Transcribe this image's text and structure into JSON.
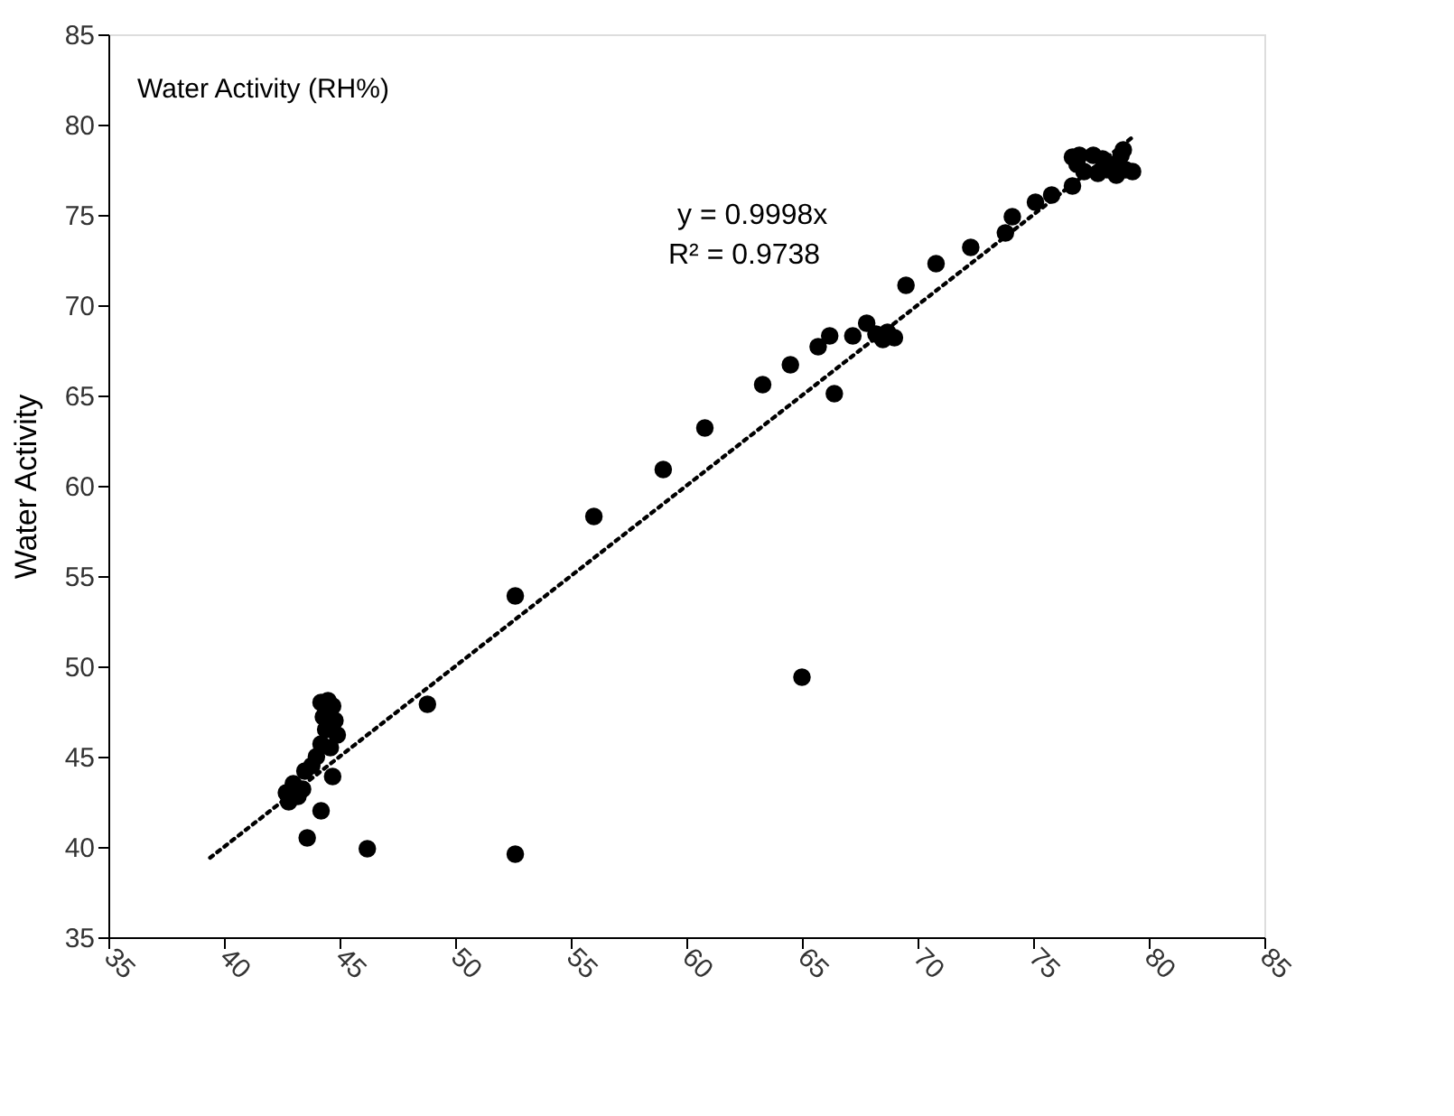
{
  "chart_data": {
    "type": "scatter",
    "ylabel": "Water Activity",
    "annotations": [
      "Water Activity (RH%)",
      "y = 0.9998x",
      "R² = 0.9738"
    ],
    "xlim": [
      35,
      85
    ],
    "xticks": [
      35,
      40,
      45,
      50,
      55,
      60,
      65,
      70,
      75,
      80,
      85
    ],
    "ylim": [
      35,
      85
    ],
    "yticks": [
      35,
      40,
      45,
      50,
      55,
      60,
      65,
      70,
      75,
      80,
      85
    ],
    "grid": false,
    "marker": "circle",
    "series": [
      {
        "color": "#000000",
        "x": [
          43.6,
          46.2,
          52.6,
          65.0,
          48.8,
          44.2,
          44.7,
          42.7,
          42.8,
          43.0,
          43.2,
          43.4,
          43.5,
          43.8,
          44.0,
          44.2,
          44.4,
          44.3,
          44.2,
          44.5,
          44.7,
          44.8,
          44.9,
          44.6,
          52.6,
          56.0,
          59.0,
          60.8,
          63.3,
          64.5,
          66.4,
          65.7,
          66.2,
          67.2,
          67.8,
          68.2,
          68.7,
          68.5,
          69.0,
          69.5,
          70.8,
          72.3,
          73.8,
          74.1,
          75.1,
          75.8,
          76.7,
          76.7,
          77.0,
          77.6,
          78.0,
          77.8,
          78.2,
          78.5,
          78.8,
          79.0,
          79.3,
          78.6,
          77.2,
          76.9,
          78.9
        ],
        "values": [
          40.5,
          39.9,
          39.6,
          49.4,
          47.9,
          42.0,
          43.9,
          43.0,
          42.5,
          43.5,
          42.8,
          43.2,
          44.2,
          44.5,
          45.0,
          45.7,
          46.5,
          47.2,
          48.0,
          48.1,
          47.8,
          47.0,
          46.2,
          45.5,
          53.9,
          58.3,
          60.9,
          63.2,
          65.6,
          66.7,
          65.1,
          67.7,
          68.3,
          68.3,
          69.0,
          68.4,
          68.5,
          68.1,
          68.2,
          71.1,
          72.3,
          73.2,
          74.0,
          74.9,
          75.7,
          76.1,
          76.6,
          78.2,
          78.3,
          78.3,
          78.1,
          77.3,
          77.5,
          77.8,
          78.3,
          77.5,
          77.4,
          77.2,
          77.4,
          77.8,
          78.6
        ]
      },
      {
        "type": "line",
        "color": "#000000",
        "line_style": "dotted",
        "marker": "none",
        "x": [
          39.4,
          79.3
        ],
        "values": [
          39.4,
          79.3
        ]
      }
    ]
  }
}
